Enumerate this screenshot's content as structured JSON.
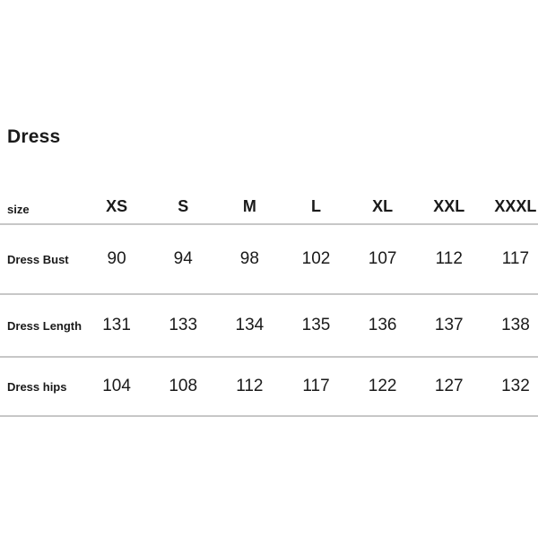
{
  "page": {
    "background_color": "#ffffff",
    "text_color": "#1a1a1a",
    "divider_color": "#c7c7c7"
  },
  "chart_data": {
    "type": "table",
    "title": "Dress",
    "corner_label": "size",
    "columns": [
      "XS",
      "S",
      "M",
      "L",
      "XL",
      "XXL",
      "XXXL"
    ],
    "rows": [
      {
        "label": "Dress Bust",
        "values": [
          90,
          94,
          98,
          102,
          107,
          112,
          117
        ]
      },
      {
        "label": "Dress Length",
        "values": [
          131,
          133,
          134,
          135,
          136,
          137,
          138
        ]
      },
      {
        "label": "Dress hips",
        "values": [
          104,
          108,
          112,
          117,
          122,
          127,
          132
        ]
      }
    ]
  }
}
